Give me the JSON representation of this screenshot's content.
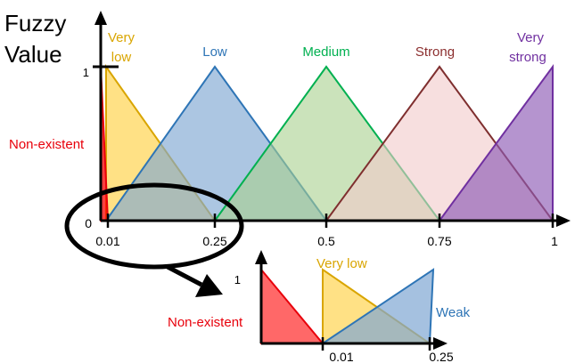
{
  "colors": {
    "nonexistent": "#e8000b",
    "very_low": "#d9a500",
    "low": "#2e75b6",
    "medium": "#00b050",
    "strong": "#8b2e2e",
    "very_strong": "#7030a0",
    "axis": "#000000"
  },
  "main": {
    "y_title_line1": "Fuzzy",
    "y_title_line2": "Value",
    "y_tick_one": "1",
    "origin_label": "0",
    "x_ticks": [
      "0.01",
      "0.25",
      "0.5",
      "0.75",
      "1"
    ],
    "sets": {
      "nonexistent": "Non-existent",
      "very_low_line1": "Very",
      "very_low_line2": "low",
      "low": "Low",
      "medium": "Medium",
      "strong": "Strong",
      "very_strong_line1": "Very",
      "very_strong_line2": "strong"
    }
  },
  "inset": {
    "y_tick_one": "1",
    "x_ticks": [
      "0.01",
      "0.25"
    ],
    "sets": {
      "nonexistent": "Non-existent",
      "very_low": "Very low",
      "weak": "Weak"
    }
  },
  "icons": [
    "zoom-circle-icon",
    "zoom-arrow-icon"
  ]
}
